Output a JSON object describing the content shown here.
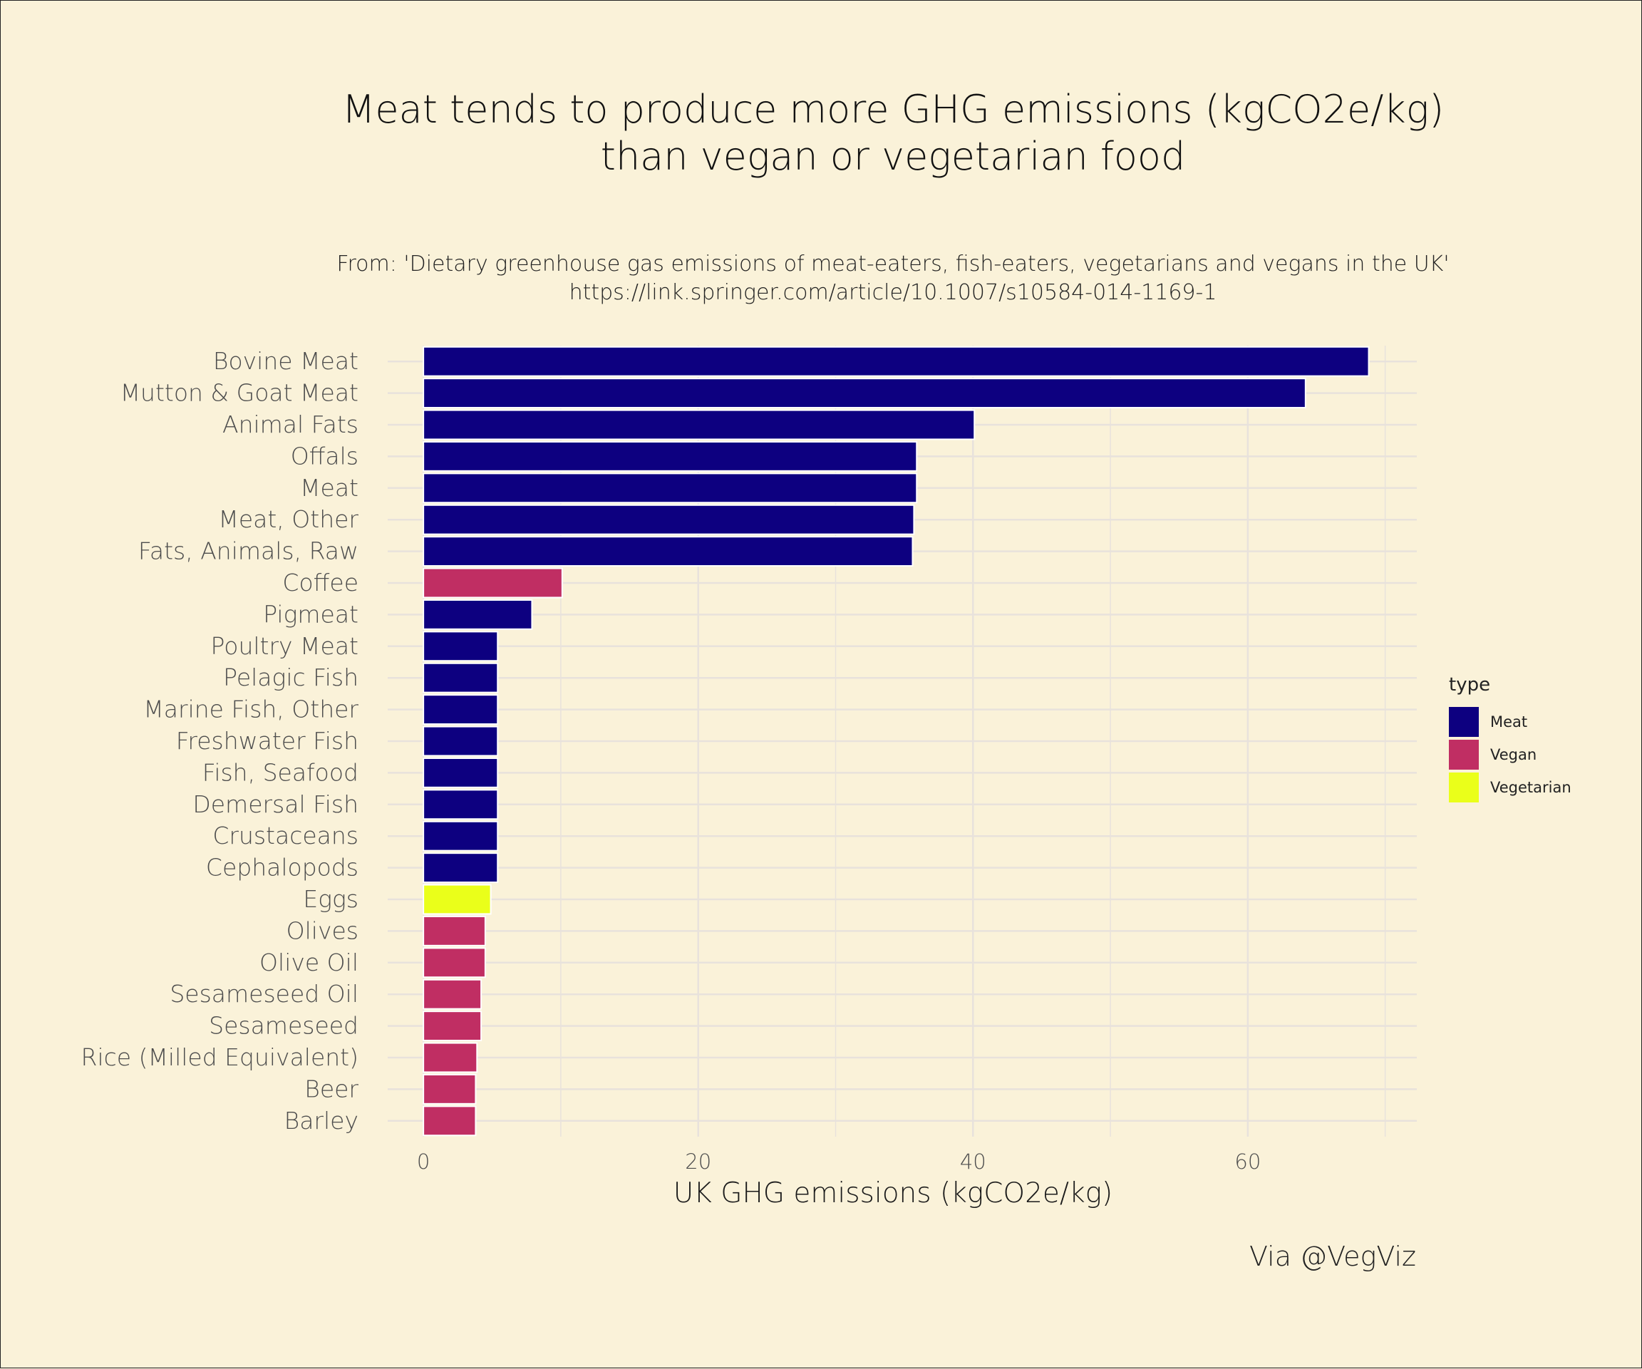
{
  "chart_data": {
    "type": "bar",
    "orientation": "horizontal",
    "title": [
      "Meat tends to produce more GHG emissions (kgCO2e/kg)",
      "than vegan or vegetarian food"
    ],
    "subtitle": [
      "From: 'Dietary greenhouse gas emissions of meat-eaters, fish-eaters, vegetarians and vegans in the UK'",
      "https://link.springer.com/article/10.1007/s10584-014-1169-1"
    ],
    "xlabel": "UK GHG emissions (kgCO2e/kg)",
    "ylabel": "",
    "xlim": [
      -2.6,
      72.3
    ],
    "xticks": [
      0,
      20,
      40,
      60
    ],
    "grid": true,
    "legend": {
      "title": "type",
      "position": "right",
      "entries": [
        {
          "label": "Meat",
          "color": "#0d0080"
        },
        {
          "label": "Vegan",
          "color": "#c02e63"
        },
        {
          "label": "Vegetarian",
          "color": "#eaff1a"
        }
      ]
    },
    "caption": "Via @VegViz",
    "categories": [
      "Bovine Meat",
      "Mutton & Goat Meat",
      "Animal Fats",
      "Offals",
      "Meat",
      "Meat, Other",
      "Fats, Animals, Raw",
      "Coffee",
      "Pigmeat",
      "Poultry Meat",
      "Pelagic Fish",
      "Marine Fish, Other",
      "Freshwater Fish",
      "Fish, Seafood",
      "Demersal Fish",
      "Crustaceans",
      "Cephalopods",
      "Eggs",
      "Olives",
      "Olive Oil",
      "Sesameseed Oil",
      "Sesameseed",
      "Rice (Milled Equivalent)",
      "Beer",
      "Barley"
    ],
    "values": [
      68.8,
      64.2,
      40.1,
      35.9,
      35.9,
      35.7,
      35.6,
      10.1,
      7.9,
      5.4,
      5.4,
      5.4,
      5.4,
      5.4,
      5.4,
      5.4,
      5.4,
      4.9,
      4.5,
      4.5,
      4.2,
      4.2,
      3.9,
      3.8,
      3.8
    ],
    "types": [
      "Meat",
      "Meat",
      "Meat",
      "Meat",
      "Meat",
      "Meat",
      "Meat",
      "Vegan",
      "Meat",
      "Meat",
      "Meat",
      "Meat",
      "Meat",
      "Meat",
      "Meat",
      "Meat",
      "Meat",
      "Vegetarian",
      "Vegan",
      "Vegan",
      "Vegan",
      "Vegan",
      "Vegan",
      "Vegan",
      "Vegan"
    ],
    "colors": {
      "Meat": "#0d0080",
      "Vegan": "#c02e63",
      "Vegetarian": "#eaff1a"
    }
  },
  "styles": {
    "background": "#faf2d9",
    "grid_color": "#e8e2dc",
    "bar_outline": "#ffffff"
  }
}
